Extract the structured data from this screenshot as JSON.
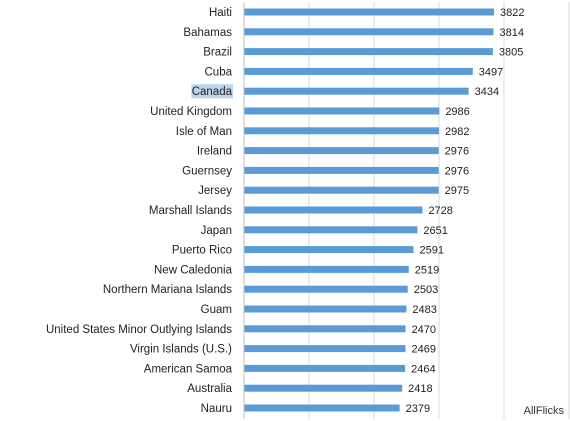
{
  "chart_data": {
    "type": "bar",
    "orientation": "horizontal",
    "categories": [
      "Haiti",
      "Bahamas",
      "Brazil",
      "Cuba",
      "Canada",
      "United Kingdom",
      "Isle of Man",
      "Ireland",
      "Guernsey",
      "Jersey",
      "Marshall Islands",
      "Japan",
      "Puerto Rico",
      "New Caledonia",
      "Northern Mariana Islands",
      "Guam",
      "United States Minor Outlying Islands",
      "Virgin Islands (U.S.)",
      "American Samoa",
      "Australia",
      "Nauru"
    ],
    "values": [
      3822,
      3814,
      3805,
      3497,
      3434,
      2986,
      2982,
      2976,
      2976,
      2975,
      2728,
      2651,
      2591,
      2519,
      2503,
      2483,
      2470,
      2469,
      2464,
      2418,
      2379
    ],
    "highlighted_category": "Canada",
    "bar_color": "#5b9bd5",
    "highlight_color": "#bcd4ec",
    "title": "",
    "xlabel": "",
    "ylabel": "",
    "data_labels": true,
    "grid": true,
    "legend": "none"
  },
  "watermark": "AllFlicks"
}
